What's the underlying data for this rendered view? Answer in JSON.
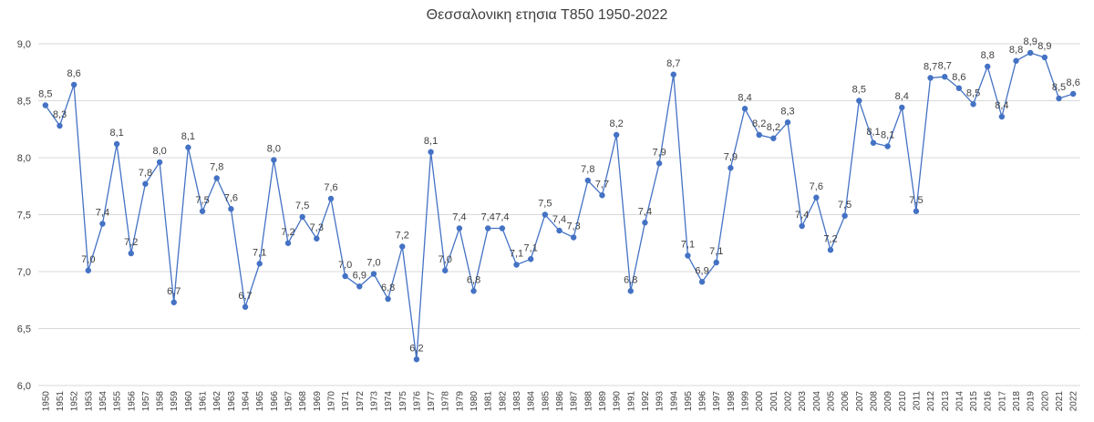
{
  "chart_data": {
    "type": "line",
    "title": "Θεσσαλονικη ετησια Τ850 1950-2022",
    "xlabel": "",
    "ylabel": "",
    "ylim": [
      6.0,
      9.0
    ],
    "yticks": [
      "6,0",
      "6,5",
      "7,0",
      "7,5",
      "8,0",
      "8,5",
      "9,0"
    ],
    "grid": true,
    "legend": "none",
    "color": "#4472C4",
    "categories": [
      "1950",
      "1951",
      "1952",
      "1953",
      "1954",
      "1955",
      "1956",
      "1957",
      "1958",
      "1959",
      "1960",
      "1961",
      "1962",
      "1963",
      "1964",
      "1965",
      "1966",
      "1967",
      "1968",
      "1969",
      "1970",
      "1971",
      "1972",
      "1973",
      "1974",
      "1975",
      "1976",
      "1977",
      "1978",
      "1979",
      "1980",
      "1981",
      "1982",
      "1983",
      "1984",
      "1985",
      "1986",
      "1987",
      "1988",
      "1989",
      "1990",
      "1991",
      "1992",
      "1993",
      "1994",
      "1995",
      "1996",
      "1997",
      "1998",
      "1999",
      "2000",
      "2001",
      "2002",
      "2003",
      "2004",
      "2005",
      "2006",
      "2007",
      "2008",
      "2009",
      "2010",
      "2011",
      "2012",
      "2013",
      "2014",
      "2015",
      "2016",
      "2017",
      "2018",
      "2019",
      "2020",
      "2021",
      "2022"
    ],
    "values": [
      8.46,
      8.28,
      8.64,
      7.01,
      7.42,
      8.12,
      7.16,
      7.77,
      7.96,
      6.73,
      8.09,
      7.53,
      7.82,
      7.55,
      6.69,
      7.07,
      7.98,
      7.25,
      7.48,
      7.29,
      7.64,
      6.96,
      6.87,
      6.98,
      6.76,
      7.22,
      6.23,
      8.05,
      7.01,
      7.38,
      6.83,
      7.38,
      7.38,
      7.06,
      7.11,
      7.5,
      7.36,
      7.3,
      7.8,
      7.67,
      8.2,
      6.83,
      7.43,
      7.95,
      8.73,
      7.14,
      6.91,
      7.08,
      7.91,
      8.43,
      8.2,
      8.17,
      8.31,
      7.4,
      7.65,
      7.19,
      7.49,
      8.5,
      8.13,
      8.1,
      8.44,
      7.53,
      8.7,
      8.71,
      8.61,
      8.47,
      8.8,
      8.36,
      8.85,
      8.92,
      8.88,
      8.52,
      8.56
    ],
    "labels": [
      "8,5",
      "8,3",
      "8,6",
      "7,0",
      "7,4",
      "8,1",
      "7,2",
      "7,8",
      "8,0",
      "6,7",
      "8,1",
      "7,5",
      "7,8",
      "7,6",
      "6,7",
      "7,1",
      "8,0",
      "7,2",
      "7,5",
      "7,3",
      "7,6",
      "7,0",
      "6,9",
      "7,0",
      "6,8",
      "7,2",
      "6,2",
      "8,1",
      "7,0",
      "7,4",
      "6,8",
      "7,4",
      "7,4",
      "7,1",
      "7,1",
      "7,5",
      "7,4",
      "7,3",
      "7,8",
      "7,7",
      "8,2",
      "6,8",
      "7,4",
      "7,9",
      "8,7",
      "7,1",
      "6,9",
      "7,1",
      "7,9",
      "8,4",
      "8,2",
      "8,2",
      "8,3",
      "7,4",
      "7,6",
      "7,2",
      "7,5",
      "8,5",
      "8,1",
      "8,1",
      "8,4",
      "7,5",
      "8,7",
      "8,7",
      "8,6",
      "8,5",
      "8,8",
      "8,4",
      "8,8",
      "8,9",
      "8,9",
      "8,5",
      "8,6"
    ]
  }
}
